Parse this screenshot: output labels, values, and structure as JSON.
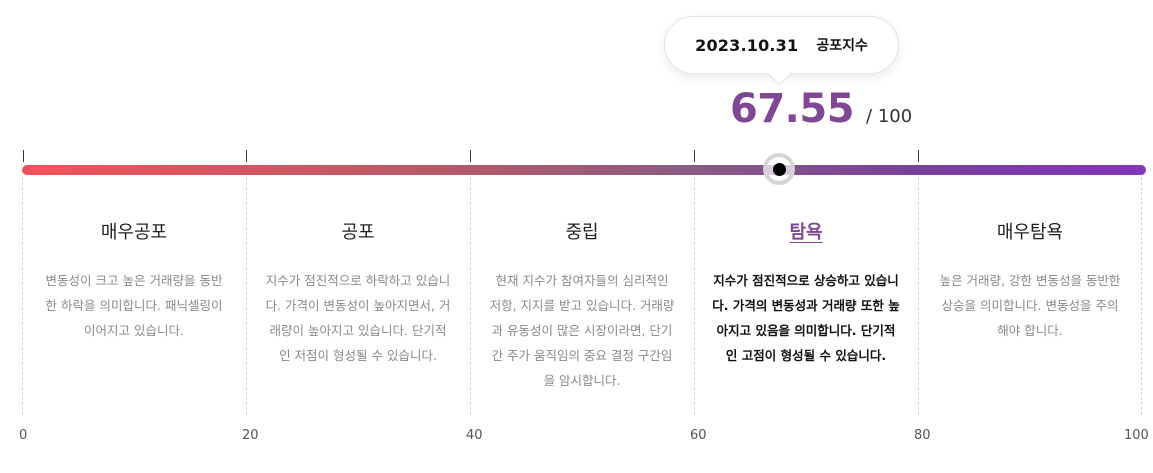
{
  "tooltip": {
    "date": "2023.10.31",
    "label": "공포지수"
  },
  "score": {
    "value": "67.55",
    "max": "/ 100"
  },
  "gauge": {
    "current_value": 67.55,
    "min": 0,
    "max": 100
  },
  "categories": [
    {
      "title": "매우공포",
      "desc": "변동성이 크고 높은 거래량을 동반한 하락을 의미합니다. 패닉셀링이 이어지고 있습니다."
    },
    {
      "title": "공포",
      "desc": "지수가 점진적으로 하락하고 있습니다. 가격이 변동성이 높아지면서, 거래량이 높아지고 있습니다. 단기적인 저점이 형성될 수 있습니다."
    },
    {
      "title": "중립",
      "desc": "현재 지수가 참여자들의 심리적인 저항, 지지를 받고 있습니다. 거래량과 유동성이 많은 시장이라면, 단기간 주가 움직임의 중요 결정 구간임을 암시합니다."
    },
    {
      "title": "탐욕",
      "desc": "지수가 점진적으로 상승하고 있습니다. 가격의 변동성과 거래량 또한 높아지고 있음을 의미합니다. 단기적인 고점이 형성될 수 있습니다.",
      "active": true
    },
    {
      "title": "매우탐욕",
      "desc": "높은 거래량, 강한 변동성을 동반한 상승을 의미합니다. 변동성을 주의해야 합니다."
    }
  ],
  "axis": {
    "ticks": [
      "0",
      "20",
      "40",
      "60",
      "80",
      "100"
    ]
  },
  "colors": {
    "accent": "#7f4796",
    "track_start": "#f4535a",
    "track_end": "#8136bd"
  }
}
